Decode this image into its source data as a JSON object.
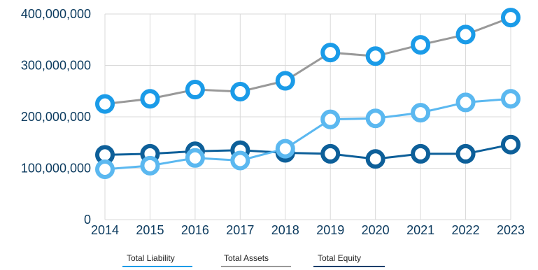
{
  "chart_data": {
    "type": "line",
    "title": "",
    "xlabel": "",
    "ylabel": "",
    "x": [
      "2014",
      "2015",
      "2016",
      "2017",
      "2018",
      "2019",
      "2020",
      "2021",
      "2022",
      "2023"
    ],
    "ylim": [
      0,
      400000000
    ],
    "yticks": [
      "0",
      "100,000,000",
      "200,000,000",
      "300,000,000",
      "400,000,000"
    ],
    "grid": true,
    "legend_position": "bottom",
    "series": [
      {
        "name": "Total Liability",
        "color": "#5bb8f0",
        "values": [
          98000000,
          105000000,
          120000000,
          115000000,
          138000000,
          195000000,
          197000000,
          208000000,
          228000000,
          235000000
        ]
      },
      {
        "name": "Total Assets",
        "color": "#1a9be8",
        "line_color": "#999999",
        "values": [
          225000000,
          235000000,
          253000000,
          249000000,
          270000000,
          325000000,
          318000000,
          340000000,
          360000000,
          393000000
        ]
      },
      {
        "name": "Total Equity",
        "color": "#0d5f99",
        "values": [
          126000000,
          128000000,
          133000000,
          135000000,
          130000000,
          128000000,
          118000000,
          128000000,
          128000000,
          146000000
        ]
      }
    ]
  },
  "legend": {
    "items": [
      {
        "label": "Total Liability",
        "color": "#1a9be8"
      },
      {
        "label": "Total Assets",
        "color": "#999999"
      },
      {
        "label": "Total Equity",
        "color": "#0d3f6b"
      }
    ]
  }
}
